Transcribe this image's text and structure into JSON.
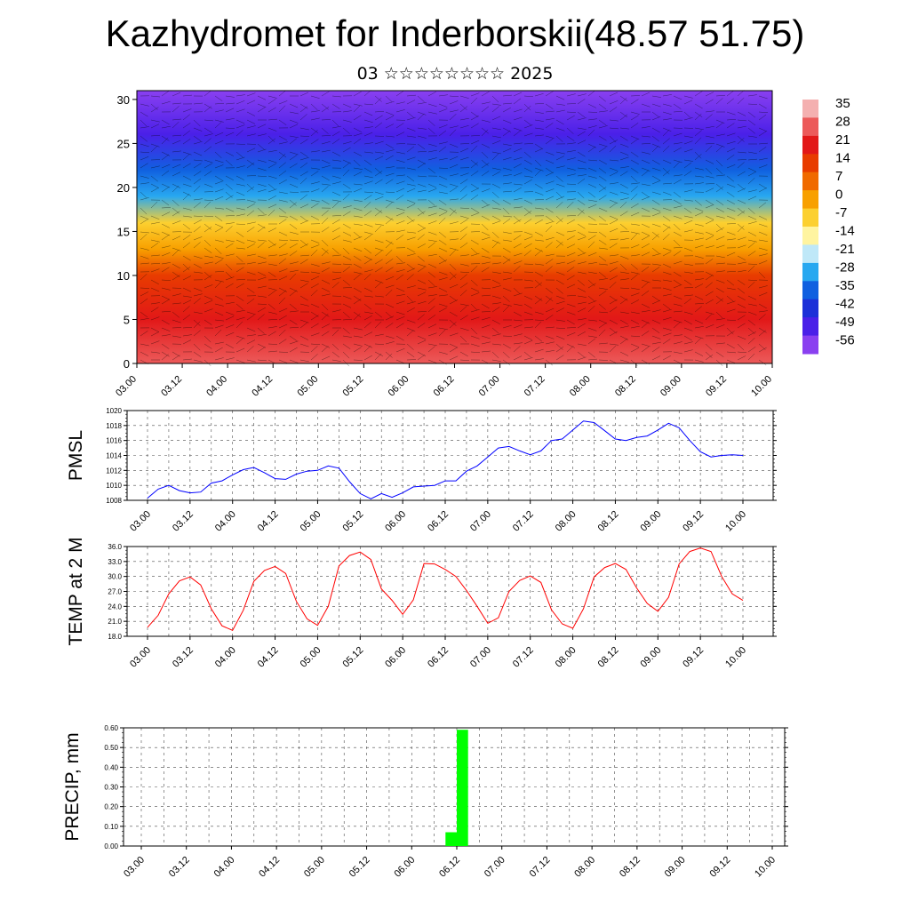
{
  "title": "Kazhydromet for Inderborskii(48.57 51.75)",
  "subtitle": "03 ☆☆☆☆☆☆☆☆ 2025",
  "colors": {
    "pmsl_line": "#0000ff",
    "temp_line": "#ff0000",
    "precip_bar": "#00ff00"
  },
  "chart_data": [
    {
      "type": "heatmap",
      "name": "vertical-section",
      "y_ticks": [
        0,
        5,
        10,
        15,
        20,
        25,
        30
      ],
      "ylim": [
        0,
        31
      ],
      "x_ticks": [
        "03.00",
        "03.12",
        "04.00",
        "04.12",
        "05.00",
        "05.12",
        "06.00",
        "06.12",
        "07.00",
        "07.12",
        "08.00",
        "08.12",
        "09.00",
        "09.12",
        "10.00"
      ],
      "colorbar": {
        "labels": [
          "35",
          "28",
          "21",
          "14",
          "7",
          "0",
          "-7",
          "-14",
          "-21",
          "-28",
          "-35",
          "-42",
          "-49",
          "-56"
        ],
        "colors_top_to_bottom": [
          "#f4b0b0",
          "#ec5a5a",
          "#e21818",
          "#e83c00",
          "#f06a00",
          "#f8a000",
          "#fcd030",
          "#fff4a0",
          "#bfe8f8",
          "#28a8f0",
          "#1060e0",
          "#1c30d8",
          "#4a20e8",
          "#8a40f0"
        ]
      },
      "profile": [
        {
          "level": 0,
          "value": 28
        },
        {
          "level": 5,
          "value": 24
        },
        {
          "level": 10,
          "value": 12
        },
        {
          "level": 13,
          "value": 3
        },
        {
          "level": 16,
          "value": -10
        },
        {
          "level": 19,
          "value": -28
        },
        {
          "level": 22,
          "value": -38
        },
        {
          "level": 26,
          "value": -50
        },
        {
          "level": 31,
          "value": -56
        }
      ]
    },
    {
      "type": "line",
      "ylabel": "PMSL",
      "ylim": [
        1008,
        1020
      ],
      "y_ticks": [
        "1008",
        "1010",
        "1012",
        "1014",
        "1016",
        "1018",
        "1020"
      ],
      "x_ticks": [
        "03.00",
        "03.12",
        "04.00",
        "04.12",
        "05.00",
        "05.12",
        "06.00",
        "06.12",
        "07.00",
        "07.12",
        "08.00",
        "08.12",
        "09.00",
        "09.12",
        "10.00"
      ],
      "x_step_hours": 3,
      "values": [
        1008.3,
        1009.5,
        1010.0,
        1009.3,
        1009.0,
        1009.1,
        1010.3,
        1010.6,
        1011.4,
        1012.1,
        1012.4,
        1011.7,
        1010.9,
        1010.8,
        1011.5,
        1011.9,
        1012.0,
        1012.6,
        1012.3,
        1010.5,
        1008.9,
        1008.2,
        1008.9,
        1008.4,
        1009.0,
        1009.8,
        1009.9,
        1010.0,
        1010.6,
        1010.6,
        1011.9,
        1012.6,
        1013.8,
        1015.0,
        1015.2,
        1014.6,
        1014.1,
        1014.6,
        1016.0,
        1016.2,
        1017.4,
        1018.6,
        1018.4,
        1017.3,
        1016.2,
        1016.0,
        1016.4,
        1016.6,
        1017.4,
        1018.3,
        1017.7,
        1016.0,
        1014.5,
        1013.8,
        1014.0,
        1014.1,
        1014.0
      ]
    },
    {
      "type": "line",
      "ylabel": "TEMP at 2 M",
      "ylim": [
        18,
        36
      ],
      "y_ticks": [
        "18.0",
        "21.0",
        "24.0",
        "27.0",
        "30.0",
        "33.0",
        "36.0"
      ],
      "x_ticks": [
        "03.00",
        "03.12",
        "04.00",
        "04.12",
        "05.00",
        "05.12",
        "06.00",
        "06.12",
        "07.00",
        "07.12",
        "08.00",
        "08.12",
        "09.00",
        "09.12",
        "10.00"
      ],
      "x_step_hours": 3,
      "values": [
        19.8,
        22.2,
        26.5,
        29.1,
        29.9,
        28.3,
        23.5,
        20.1,
        19.2,
        23.2,
        29.0,
        31.2,
        32.0,
        30.6,
        25.0,
        21.5,
        20.2,
        24.0,
        32.1,
        34.2,
        34.9,
        33.4,
        27.5,
        25.2,
        22.4,
        25.3,
        32.6,
        32.5,
        31.4,
        30.0,
        27.2,
        24.0,
        20.6,
        21.7,
        27.0,
        29.2,
        30.1,
        28.8,
        23.3,
        20.5,
        19.6,
        23.5,
        29.9,
        31.8,
        32.6,
        31.4,
        27.7,
        24.6,
        23.0,
        25.8,
        32.5,
        35.0,
        35.7,
        35.0,
        30.0,
        26.5,
        25.2
      ]
    },
    {
      "type": "bar",
      "ylabel": "PRECIP, mm",
      "ylim": [
        0,
        0.6
      ],
      "y_ticks": [
        "0.00",
        "0.10",
        "0.20",
        "0.30",
        "0.40",
        "0.50",
        "0.60"
      ],
      "x_ticks": [
        "03.00",
        "03.12",
        "04.00",
        "04.12",
        "05.00",
        "05.12",
        "06.00",
        "06.12",
        "07.00",
        "07.12",
        "08.00",
        "08.12",
        "09.00",
        "09.12",
        "10.00"
      ],
      "bars": [
        {
          "start_hours": 81,
          "end_hours": 84,
          "value": 0.07
        },
        {
          "start_hours": 84,
          "end_hours": 87,
          "value": 0.59
        }
      ]
    }
  ]
}
